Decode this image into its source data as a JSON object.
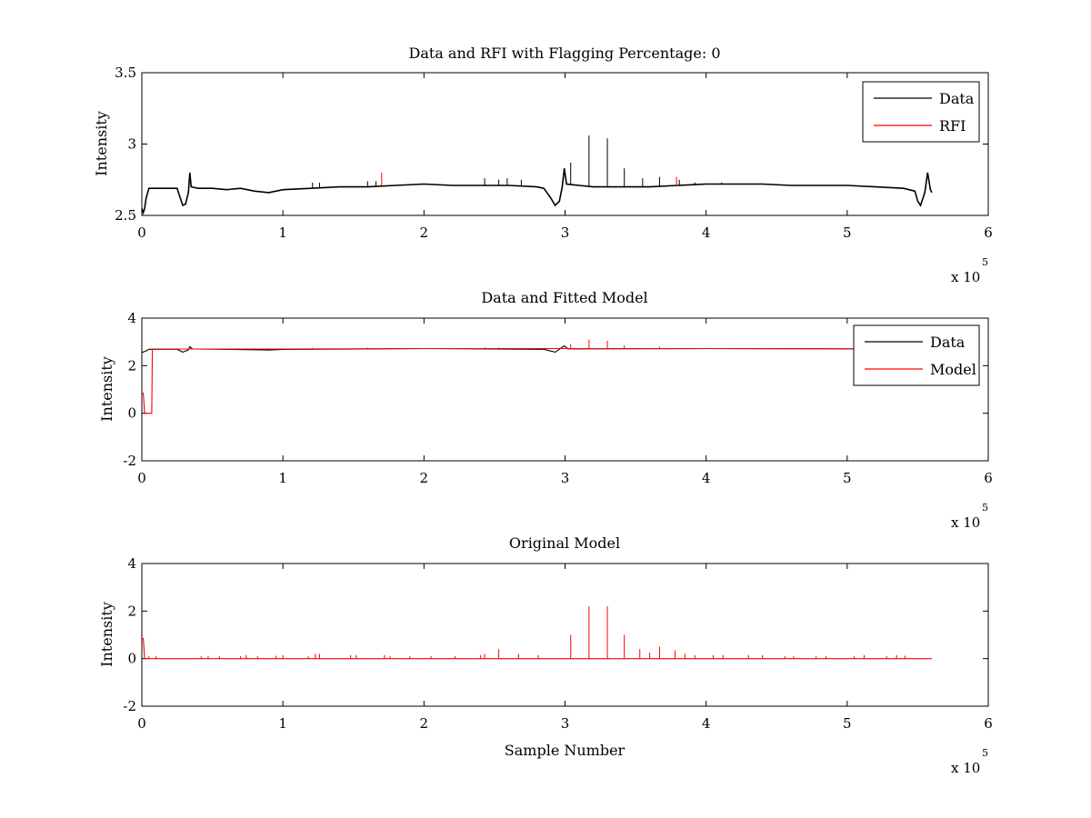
{
  "chart_data": [
    {
      "type": "line",
      "title": "Data and RFI with Flagging Percentage: 0",
      "xlabel": "",
      "ylabel": "Intensity",
      "xlim": [
        0,
        600000
      ],
      "ylim": [
        2.5,
        3.5
      ],
      "xticks": [
        "0",
        "1",
        "2",
        "3",
        "4",
        "5",
        "6"
      ],
      "yticks": [
        "2.5",
        "3",
        "3.5"
      ],
      "x_exponent_base": "x 10",
      "x_exponent": "5",
      "grid": false,
      "legend_position": "top-right",
      "series": [
        {
          "name": "Data",
          "color": "#000000",
          "points": [
            [
              0,
              2.55
            ],
            [
              1000,
              2.52
            ],
            [
              2000,
              2.55
            ],
            [
              3000,
              2.62
            ],
            [
              5000,
              2.69
            ],
            [
              10000,
              2.69
            ],
            [
              20000,
              2.69
            ],
            [
              25000,
              2.69
            ],
            [
              27000,
              2.63
            ],
            [
              29000,
              2.57
            ],
            [
              31000,
              2.58
            ],
            [
              33000,
              2.66
            ],
            [
              34000,
              2.8
            ],
            [
              35000,
              2.7
            ],
            [
              40000,
              2.69
            ],
            [
              50000,
              2.69
            ],
            [
              60000,
              2.68
            ],
            [
              70000,
              2.69
            ],
            [
              80000,
              2.67
            ],
            [
              90000,
              2.66
            ],
            [
              100000,
              2.68
            ],
            [
              120000,
              2.69
            ],
            [
              140000,
              2.7
            ],
            [
              160000,
              2.7
            ],
            [
              180000,
              2.71
            ],
            [
              200000,
              2.72
            ],
            [
              220000,
              2.71
            ],
            [
              240000,
              2.71
            ],
            [
              260000,
              2.71
            ],
            [
              280000,
              2.7
            ],
            [
              285000,
              2.69
            ],
            [
              290000,
              2.62
            ],
            [
              293000,
              2.57
            ],
            [
              296000,
              2.6
            ],
            [
              298000,
              2.7
            ],
            [
              299500,
              2.83
            ],
            [
              301000,
              2.72
            ],
            [
              310000,
              2.71
            ],
            [
              320000,
              2.7
            ],
            [
              340000,
              2.7
            ],
            [
              360000,
              2.7
            ],
            [
              380000,
              2.71
            ],
            [
              400000,
              2.72
            ],
            [
              420000,
              2.72
            ],
            [
              440000,
              2.72
            ],
            [
              460000,
              2.71
            ],
            [
              480000,
              2.71
            ],
            [
              500000,
              2.71
            ],
            [
              520000,
              2.7
            ],
            [
              540000,
              2.69
            ],
            [
              548000,
              2.67
            ],
            [
              550000,
              2.6
            ],
            [
              552000,
              2.57
            ],
            [
              555000,
              2.66
            ],
            [
              557000,
              2.8
            ],
            [
              559000,
              2.68
            ],
            [
              560000,
              2.66
            ]
          ],
          "spikes": [
            [
              3000,
              2.62
            ],
            [
              34000,
              2.8
            ],
            [
              121000,
              2.73
            ],
            [
              126000,
              2.73
            ],
            [
              160000,
              2.74
            ],
            [
              166000,
              2.74
            ],
            [
              243000,
              2.76
            ],
            [
              253000,
              2.75
            ],
            [
              259000,
              2.76
            ],
            [
              269000,
              2.75
            ],
            [
              299500,
              2.83
            ],
            [
              304000,
              2.87
            ],
            [
              317000,
              3.06
            ],
            [
              330000,
              3.04
            ],
            [
              342000,
              2.83
            ],
            [
              355000,
              2.76
            ],
            [
              367000,
              2.77
            ],
            [
              381000,
              2.75
            ],
            [
              392000,
              2.73
            ],
            [
              411000,
              2.73
            ]
          ]
        },
        {
          "name": "RFI",
          "color": "#ff0000",
          "points": [],
          "spikes": [
            [
              170000,
              2.8
            ],
            [
              379000,
              2.77
            ]
          ]
        }
      ]
    },
    {
      "type": "line",
      "title": "Data and Fitted Model",
      "xlabel": "",
      "ylabel": "Intensity",
      "xlim": [
        0,
        600000
      ],
      "ylim": [
        -2,
        4
      ],
      "xticks": [
        "0",
        "1",
        "2",
        "3",
        "4",
        "5",
        "6"
      ],
      "yticks": [
        "-2",
        "0",
        "2",
        "4"
      ],
      "x_exponent_base": "x 10",
      "x_exponent": "5",
      "grid": false,
      "legend_position": "top-right",
      "series": [
        {
          "name": "Data",
          "color": "#000000",
          "points": [
            [
              0,
              2.55
            ],
            [
              3000,
              2.62
            ],
            [
              5000,
              2.69
            ],
            [
              25000,
              2.69
            ],
            [
              29000,
              2.57
            ],
            [
              33000,
              2.66
            ],
            [
              34000,
              2.8
            ],
            [
              36000,
              2.7
            ],
            [
              80000,
              2.67
            ],
            [
              90000,
              2.66
            ],
            [
              100000,
              2.68
            ],
            [
              200000,
              2.72
            ],
            [
              285000,
              2.69
            ],
            [
              293000,
              2.57
            ],
            [
              299500,
              2.83
            ],
            [
              302000,
              2.71
            ],
            [
              400000,
              2.72
            ],
            [
              500000,
              2.71
            ],
            [
              548000,
              2.67
            ],
            [
              552000,
              2.57
            ],
            [
              557000,
              2.8
            ],
            [
              560000,
              2.66
            ]
          ],
          "spikes": []
        },
        {
          "name": "Model",
          "color": "#ff0000",
          "points": [
            [
              0,
              0.85
            ],
            [
              1000,
              0.85
            ],
            [
              2000,
              0.0
            ],
            [
              7000,
              0.0
            ],
            [
              7500,
              2.7
            ],
            [
              100000,
              2.7
            ],
            [
              200000,
              2.72
            ],
            [
              300000,
              2.72
            ],
            [
              400000,
              2.72
            ],
            [
              500000,
              2.71
            ],
            [
              560000,
              2.7
            ]
          ],
          "spikes": [
            [
              317000,
              3.1
            ],
            [
              330000,
              3.05
            ],
            [
              304000,
              2.9
            ],
            [
              342000,
              2.85
            ],
            [
              367000,
              2.8
            ],
            [
              121000,
              2.75
            ],
            [
              160000,
              2.76
            ],
            [
              243000,
              2.77
            ],
            [
              253000,
              2.76
            ]
          ]
        }
      ]
    },
    {
      "type": "line",
      "title": "Original Model",
      "xlabel": "Sample Number",
      "ylabel": "Intensity",
      "xlim": [
        0,
        600000
      ],
      "ylim": [
        -2,
        4
      ],
      "xticks": [
        "0",
        "1",
        "2",
        "3",
        "4",
        "5",
        "6"
      ],
      "yticks": [
        "-2",
        "0",
        "2",
        "4"
      ],
      "x_exponent_base": "x 10",
      "x_exponent": "5",
      "grid": false,
      "legend_position": "none",
      "series": [
        {
          "color": "#ff0000",
          "points": [
            [
              0,
              0.85
            ],
            [
              1000,
              0.85
            ],
            [
              2000,
              0.0
            ],
            [
              560000,
              0.0
            ]
          ],
          "spikes": [
            [
              5000,
              0.1
            ],
            [
              10000,
              0.1
            ],
            [
              42000,
              0.1
            ],
            [
              47000,
              0.12
            ],
            [
              55000,
              0.1
            ],
            [
              70000,
              0.1
            ],
            [
              74000,
              0.15
            ],
            [
              82000,
              0.1
            ],
            [
              95000,
              0.12
            ],
            [
              100000,
              0.15
            ],
            [
              118000,
              0.1
            ],
            [
              123000,
              0.2
            ],
            [
              126000,
              0.2
            ],
            [
              148000,
              0.15
            ],
            [
              152000,
              0.15
            ],
            [
              172000,
              0.15
            ],
            [
              176000,
              0.1
            ],
            [
              190000,
              0.1
            ],
            [
              205000,
              0.1
            ],
            [
              222000,
              0.1
            ],
            [
              240000,
              0.15
            ],
            [
              243000,
              0.2
            ],
            [
              253000,
              0.4
            ],
            [
              267000,
              0.2
            ],
            [
              281000,
              0.15
            ],
            [
              304000,
              1.0
            ],
            [
              317000,
              2.2
            ],
            [
              330000,
              2.2
            ],
            [
              342000,
              1.0
            ],
            [
              353000,
              0.4
            ],
            [
              360000,
              0.25
            ],
            [
              367000,
              0.5
            ],
            [
              378000,
              0.35
            ],
            [
              385000,
              0.2
            ],
            [
              392000,
              0.15
            ],
            [
              405000,
              0.15
            ],
            [
              412000,
              0.15
            ],
            [
              430000,
              0.15
            ],
            [
              440000,
              0.15
            ],
            [
              456000,
              0.1
            ],
            [
              462000,
              0.1
            ],
            [
              478000,
              0.1
            ],
            [
              485000,
              0.1
            ],
            [
              505000,
              0.1
            ],
            [
              512000,
              0.15
            ],
            [
              528000,
              0.1
            ],
            [
              535000,
              0.15
            ],
            [
              541000,
              0.12
            ]
          ]
        }
      ]
    }
  ]
}
